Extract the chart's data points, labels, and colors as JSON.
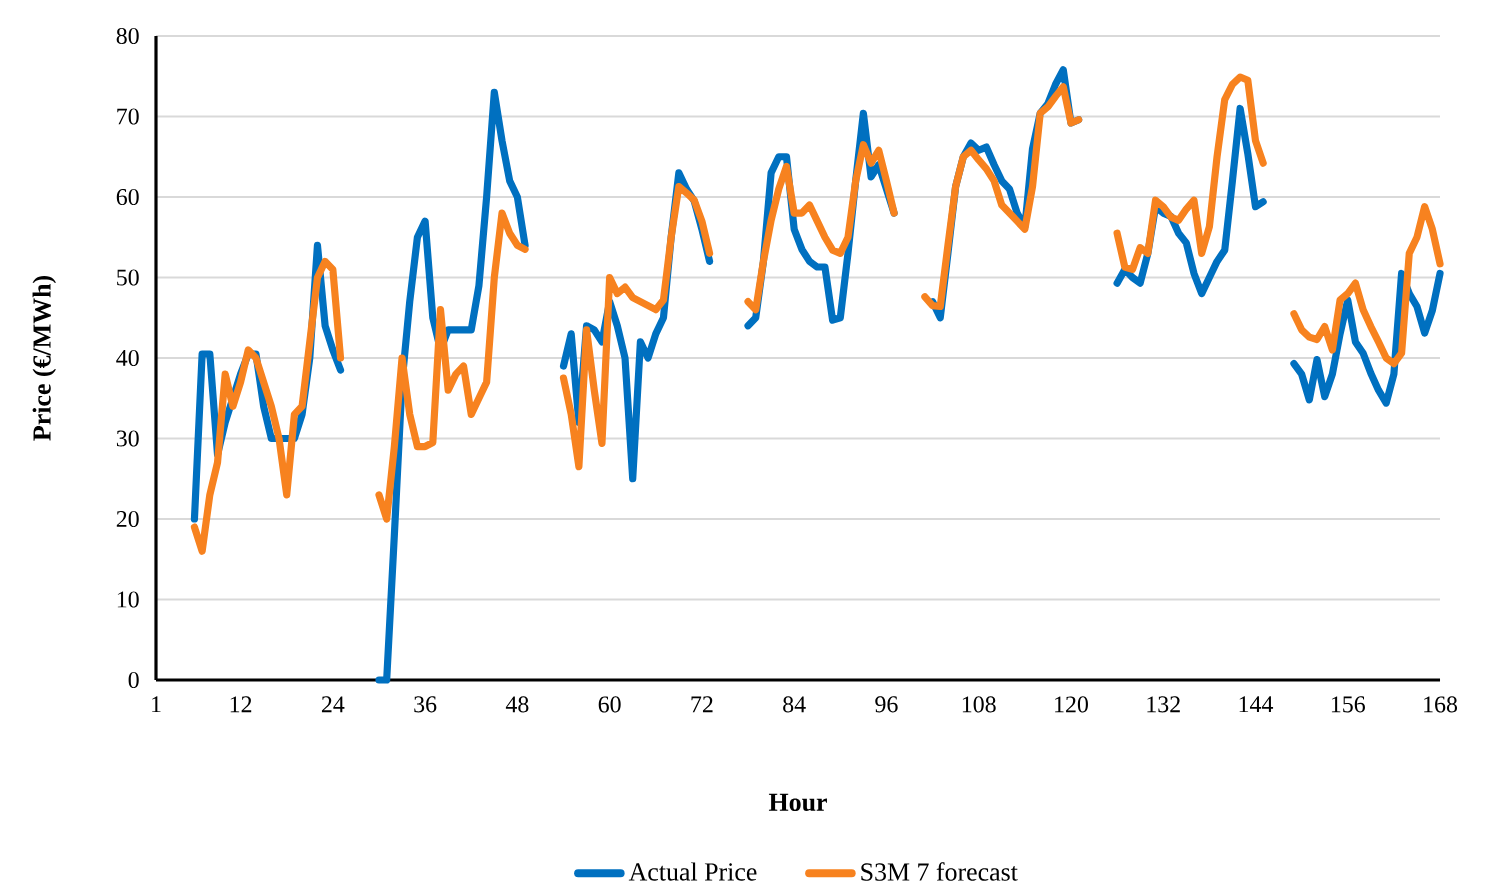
{
  "chart_data": {
    "type": "line",
    "xlabel": "Hour",
    "ylabel": "Price (€/MWh)",
    "xlim": [
      1,
      168
    ],
    "ylim": [
      0,
      80
    ],
    "xticks": [
      1,
      12,
      24,
      36,
      48,
      60,
      72,
      84,
      96,
      108,
      120,
      132,
      144,
      156,
      168
    ],
    "yticks": [
      0,
      10,
      20,
      30,
      40,
      50,
      60,
      70,
      80
    ],
    "grid": "y",
    "legend": "bottom",
    "marker": "none",
    "line_style": "solid",
    "series": [
      {
        "name": "Actual Price",
        "color": "#0070c0",
        "x": [
          6,
          7,
          8,
          9,
          10,
          11,
          12,
          13,
          14,
          15,
          16,
          17,
          18,
          19,
          20,
          21,
          22,
          23,
          24,
          25,
          26,
          30,
          31,
          32,
          33,
          34,
          35,
          36,
          37,
          38,
          39,
          40,
          41,
          42,
          43,
          44,
          45,
          46,
          47,
          48,
          49,
          50,
          54,
          55,
          56,
          57,
          58,
          59,
          60,
          61,
          62,
          63,
          64,
          65,
          66,
          67,
          68,
          69,
          70,
          71,
          72,
          73,
          74,
          78,
          79,
          80,
          81,
          82,
          83,
          84,
          85,
          86,
          87,
          88,
          89,
          90,
          91,
          92,
          93,
          94,
          95,
          96,
          97,
          98,
          102,
          103,
          104,
          105,
          106,
          107,
          108,
          109,
          110,
          111,
          112,
          113,
          114,
          115,
          116,
          117,
          118,
          119,
          120,
          121,
          122,
          126,
          127,
          128,
          129,
          130,
          131,
          132,
          133,
          134,
          135,
          136,
          137,
          138,
          139,
          140,
          141,
          142,
          143,
          144,
          145,
          146,
          149,
          150,
          151,
          152,
          153,
          154,
          155,
          156,
          157,
          158,
          159,
          160,
          161,
          162,
          163,
          164,
          165,
          166,
          167,
          168
        ],
        "values": [
          20,
          40.5,
          40.5,
          28,
          32,
          35,
          38,
          40.5,
          40.5,
          34,
          30,
          30,
          30,
          30,
          33,
          40,
          54,
          44,
          41,
          38.5,
          null,
          0,
          0,
          18,
          37,
          47,
          55,
          57,
          45,
          41,
          43.5,
          43.5,
          43.5,
          43.5,
          49,
          60,
          73,
          67,
          62,
          60,
          54,
          null,
          39,
          43,
          32,
          44,
          43.5,
          42,
          47,
          44,
          40,
          25,
          42,
          40,
          43,
          45,
          55,
          63,
          61,
          59.5,
          56,
          52,
          null,
          44,
          45,
          52,
          63,
          65,
          65,
          56,
          53.5,
          52,
          51.3,
          51.3,
          44.7,
          45,
          53,
          62,
          70.4,
          62.5,
          64,
          61,
          58,
          null,
          47,
          45,
          53,
          61.3,
          65,
          66.7,
          65.8,
          66.2,
          64,
          62,
          61,
          58,
          56.3,
          66,
          70.4,
          71.6,
          74,
          75.8,
          69.2,
          69.6,
          null,
          49.3,
          51,
          50,
          49.3,
          53,
          58.8,
          58,
          57.6,
          55.5,
          54.3,
          50.5,
          48,
          50,
          52,
          53.4,
          62,
          71,
          65.4,
          58.8,
          59.4,
          null,
          39.3,
          38,
          34.8,
          39.8,
          35.2,
          38,
          43,
          47.2,
          42,
          40.6,
          38.1,
          36,
          34.4,
          38,
          50.5,
          48,
          46.4,
          43.1,
          45.9,
          50.5
        ]
      },
      {
        "name": "S3M 7 forecast",
        "color": "#f7821f",
        "x": [
          6,
          7,
          8,
          9,
          10,
          11,
          12,
          13,
          14,
          15,
          16,
          17,
          18,
          19,
          20,
          21,
          22,
          23,
          24,
          25,
          26,
          30,
          31,
          32,
          33,
          34,
          35,
          36,
          37,
          38,
          39,
          40,
          41,
          42,
          43,
          44,
          45,
          46,
          47,
          48,
          49,
          50,
          54,
          55,
          56,
          57,
          58,
          59,
          60,
          61,
          62,
          63,
          64,
          65,
          66,
          67,
          68,
          69,
          70,
          71,
          72,
          73,
          74,
          78,
          79,
          80,
          81,
          82,
          83,
          84,
          85,
          86,
          87,
          88,
          89,
          90,
          91,
          92,
          93,
          94,
          95,
          96,
          97,
          98,
          101,
          102,
          103,
          104,
          105,
          106,
          107,
          108,
          109,
          110,
          111,
          112,
          113,
          114,
          115,
          116,
          117,
          118,
          119,
          120,
          121,
          122,
          126,
          127,
          128,
          129,
          130,
          131,
          132,
          133,
          134,
          135,
          136,
          137,
          138,
          139,
          140,
          141,
          142,
          143,
          144,
          145,
          146,
          149,
          150,
          151,
          152,
          153,
          154,
          155,
          156,
          157,
          158,
          159,
          160,
          161,
          162,
          163,
          164,
          165,
          166,
          167,
          168
        ],
        "values": [
          19,
          16,
          23,
          27,
          38,
          34,
          37,
          41,
          40,
          37,
          34,
          30,
          23,
          33,
          34,
          42,
          50,
          52,
          51,
          40,
          null,
          23,
          20,
          29,
          40,
          33,
          29,
          29,
          29.5,
          46,
          36,
          38,
          39,
          33,
          35,
          37,
          50,
          58,
          55.5,
          54,
          53.5,
          null,
          37.5,
          33,
          26.5,
          43.5,
          36,
          29.4,
          50,
          48,
          48.8,
          47.5,
          47,
          46.5,
          46,
          47.2,
          55,
          61.3,
          60.5,
          59.6,
          57,
          53,
          null,
          47,
          46,
          52,
          57.1,
          61,
          63.8,
          58,
          58,
          59,
          57,
          55,
          53.4,
          53,
          55,
          62,
          66.5,
          64.2,
          65.8,
          62,
          58,
          null,
          47.6,
          46.5,
          46.4,
          54,
          61.3,
          65,
          65.8,
          64.6,
          63.5,
          62,
          59,
          58,
          57,
          56,
          61.3,
          70.4,
          71.2,
          72.5,
          73.7,
          69.2,
          69.6,
          null,
          55.5,
          51.3,
          51,
          53.7,
          53,
          59.6,
          58.8,
          57.5,
          57.1,
          58.5,
          59.6,
          53,
          56.3,
          65,
          72.1,
          74,
          74.9,
          74.5,
          67,
          64.2,
          null,
          45.5,
          43.5,
          42.6,
          42.3,
          43.9,
          41,
          47.2,
          48,
          49.3,
          46,
          43.9,
          42,
          40,
          39.3,
          40.6,
          53,
          55,
          58.8,
          56,
          51.7
        ]
      }
    ]
  }
}
